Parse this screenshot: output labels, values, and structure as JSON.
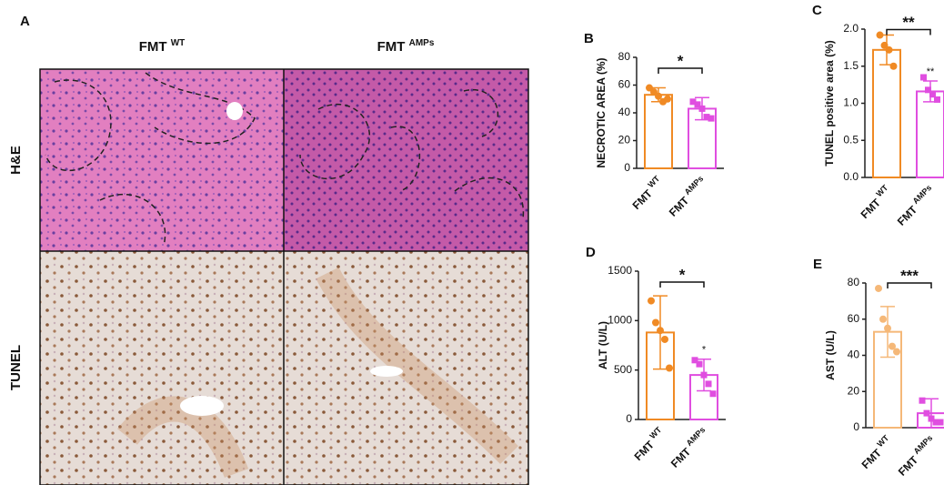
{
  "panel_a": {
    "label": "A",
    "columns": [
      "FMT WT",
      "FMT AMPs"
    ],
    "rows": [
      "H&E",
      "TUNEL"
    ]
  },
  "chart_data": [
    {
      "type": "bar",
      "panel": "B",
      "ylabel": "NECROTIC AREA (%)",
      "categories": [
        "FMT WT",
        "FMT AMPs"
      ],
      "values": [
        53,
        43
      ],
      "errors": [
        5,
        8
      ],
      "points": [
        [
          58,
          55,
          52,
          48,
          50
        ],
        [
          48,
          46,
          43,
          37,
          36
        ]
      ],
      "colors": [
        "#f08a24",
        "#e04ee0"
      ],
      "markers": [
        "circle",
        "square"
      ],
      "ylim": [
        0,
        80
      ],
      "yticks": [
        0,
        20,
        40,
        60,
        80
      ],
      "significance": "*"
    },
    {
      "type": "bar",
      "panel": "C",
      "ylabel": "TUNEL positive area (%)",
      "categories": [
        "FMT WT",
        "FMT AMPs"
      ],
      "values": [
        1.72,
        1.16
      ],
      "errors": [
        0.2,
        0.14
      ],
      "points": [
        [
          1.92,
          1.78,
          1.72,
          1.5
        ],
        [
          1.35,
          1.18,
          1.12,
          1.05
        ]
      ],
      "colors": [
        "#f08a24",
        "#e04ee0"
      ],
      "markers": [
        "circle",
        "square"
      ],
      "ylim": [
        0,
        2.0
      ],
      "yticks": [
        {
          "value": 0,
          "label": "0.0"
        },
        {
          "value": 0.5,
          "label": "0.5"
        },
        {
          "value": 1,
          "label": "1.0"
        },
        {
          "value": 1.5,
          "label": "1.5"
        },
        {
          "value": 2,
          "label": "2.0"
        }
      ],
      "significance": "**",
      "bar_annotations": [
        null,
        "**"
      ]
    },
    {
      "type": "bar",
      "panel": "D",
      "ylabel": "ALT (U/L)",
      "categories": [
        "FMT WT",
        "FMT AMPs"
      ],
      "values": [
        880,
        450
      ],
      "errors": [
        370,
        160
      ],
      "points": [
        [
          1200,
          980,
          900,
          810,
          520
        ],
        [
          600,
          560,
          450,
          360,
          260
        ]
      ],
      "colors": [
        "#f08a24",
        "#e04ee0"
      ],
      "markers": [
        "circle",
        "square"
      ],
      "ylim": [
        0,
        1500
      ],
      "yticks": [
        0,
        500,
        1000,
        1500
      ],
      "significance": "*",
      "bar_annotations": [
        null,
        "*"
      ]
    },
    {
      "type": "bar",
      "panel": "E",
      "ylabel": "AST (U/L)",
      "categories": [
        "FMT WT",
        "FMT AMPs"
      ],
      "values": [
        53,
        8
      ],
      "errors": [
        14,
        8
      ],
      "points": [
        [
          77,
          60,
          55,
          45,
          42
        ],
        [
          15,
          8,
          5,
          3,
          3
        ]
      ],
      "colors": [
        "#f5b878",
        "#e04ee0"
      ],
      "markers": [
        "circle",
        "square"
      ],
      "ylim": [
        0,
        80
      ],
      "yticks": [
        0,
        20,
        40,
        60,
        80
      ],
      "significance": "***"
    }
  ]
}
